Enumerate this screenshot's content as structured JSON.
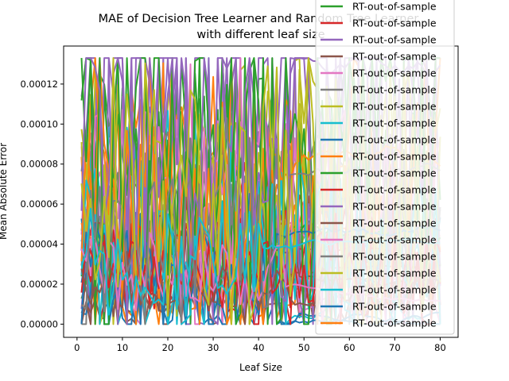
{
  "chart_data": {
    "type": "line",
    "title_line1": "MAE of Decision Tree Learner and Random Tree Learner",
    "title_line2": "with different leaf size",
    "xlabel": "Leaf Size",
    "ylabel": "Mean Absolute Error",
    "xlim": [
      -2.95,
      83.95
    ],
    "ylim": [
      -6.6e-06,
      0.000139
    ],
    "x_ticks": [
      0,
      10,
      20,
      30,
      40,
      50,
      60,
      70,
      80
    ],
    "y_ticks": [
      0,
      2e-05,
      4e-05,
      6e-05,
      8e-05,
      0.0001,
      0.00012
    ],
    "y_tick_labels": [
      "0.00000",
      "0.00002",
      "0.00004",
      "0.00006",
      "0.00008",
      "0.00010",
      "0.00012"
    ],
    "x": [
      1,
      80
    ],
    "grid": false,
    "legend_placement": "top-right (overflowing above the axes)",
    "color_cycle": [
      "#1f77b4",
      "#ff7f0e",
      "#2ca02c",
      "#d62728",
      "#9467bd",
      "#8c564b",
      "#e377c2",
      "#7f7f7f",
      "#bcbd22",
      "#17becf"
    ],
    "series": [
      {
        "name": "RT-out-of-sample",
        "color": "#2ca02c"
      },
      {
        "name": "RT-out-of-sample",
        "color": "#d62728"
      },
      {
        "name": "RT-out-of-sample",
        "color": "#9467bd"
      },
      {
        "name": "RT-out-of-sample",
        "color": "#8c564b"
      },
      {
        "name": "RT-out-of-sample",
        "color": "#e377c2"
      },
      {
        "name": "RT-out-of-sample",
        "color": "#7f7f7f"
      },
      {
        "name": "RT-out-of-sample",
        "color": "#bcbd22"
      },
      {
        "name": "RT-out-of-sample",
        "color": "#17becf"
      },
      {
        "name": "RT-out-of-sample",
        "color": "#1f77b4"
      },
      {
        "name": "RT-out-of-sample",
        "color": "#ff7f0e"
      },
      {
        "name": "RT-out-of-sample",
        "color": "#2ca02c"
      },
      {
        "name": "RT-out-of-sample",
        "color": "#d62728"
      },
      {
        "name": "RT-out-of-sample",
        "color": "#9467bd"
      },
      {
        "name": "RT-out-of-sample",
        "color": "#8c564b"
      },
      {
        "name": "RT-out-of-sample",
        "color": "#e377c2"
      },
      {
        "name": "RT-out-of-sample",
        "color": "#7f7f7f"
      },
      {
        "name": "RT-out-of-sample",
        "color": "#bcbd22"
      },
      {
        "name": "RT-out-of-sample",
        "color": "#17becf"
      },
      {
        "name": "RT-out-of-sample",
        "color": "#1f77b4"
      },
      {
        "name": "RT-out-of-sample",
        "color": "#ff7f0e"
      }
    ]
  }
}
